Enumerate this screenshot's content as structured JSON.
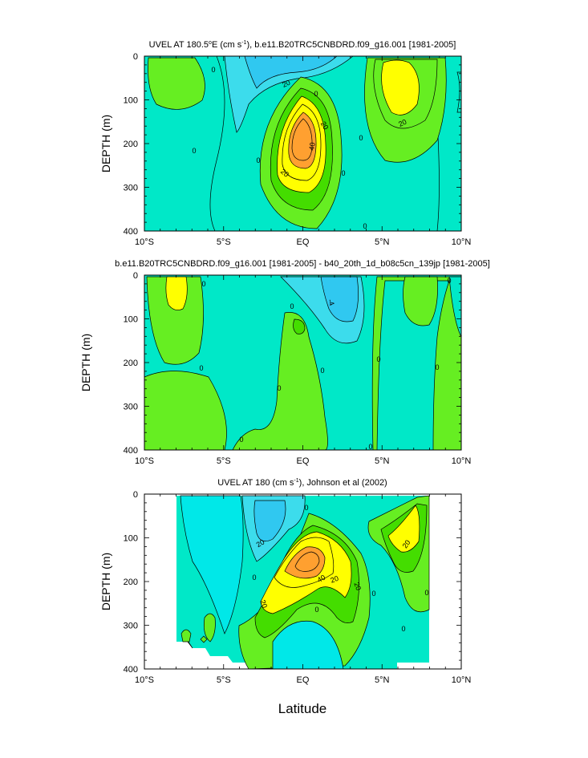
{
  "colors": {
    "cyan_light": "#00e8c8",
    "cyan": "#00e8e8",
    "cyan_mid": "#3cdcec",
    "cyan_dark": "#30c8f0",
    "green": "#66ee22",
    "green_bright": "#44dd00",
    "green_light": "#a0f020",
    "yellow": "#ffff00",
    "orange": "#ffa030",
    "line": "#000000"
  },
  "chart_data": [
    {
      "type": "contour",
      "title": "UVEL AT 180.5°E (cm s⁻¹), b.e11.B20TRC5CNBDRD.f09_g16.001 [1981-2005]",
      "title_pre": "UVEL AT 180.5",
      "title_sup1": "o",
      "title_mid": "E (cm s",
      "title_sup2": "-1",
      "title_post": "), b.e11.B20TRC5CNBDRD.f09_g16.001 [1981-2005]",
      "ylabel": "DEPTH (m)",
      "xlim": [
        -10,
        10
      ],
      "ylim": [
        400,
        0
      ],
      "yticks": [
        "0",
        "100",
        "200",
        "300",
        "400"
      ],
      "xticks": [
        "10°S",
        "5°S",
        "EQ",
        "5°N",
        "10°N"
      ],
      "contour_labels": [
        "0",
        "0",
        "0",
        "0",
        "0",
        "0",
        "0",
        "20",
        "20",
        "20",
        "20",
        "40"
      ],
      "features": [
        {
          "kind": "jet",
          "lat": 0,
          "depth": 180,
          "peak": 60
        },
        {
          "kind": "max",
          "lat": 6,
          "depth": 40,
          "peak": 30
        },
        {
          "kind": "max",
          "lat": -8,
          "depth": 50,
          "peak": 10
        }
      ]
    },
    {
      "type": "contour",
      "title": "b.e11.B20TRC5CNBDRD.f09_g16.001 [1981-2005] - b40_20th_1d_b08c5cn_139jp [1981-2005]",
      "title_pre": "b.e11.B20TRC5CNBDRD.f09_g16.001 [1981-2005] - b40_20th_1d_b08c5cn_139jp [1981-2005]",
      "title_sup1": "",
      "title_mid": "",
      "title_sup2": "",
      "title_post": "",
      "ylabel": "DEPTH (m)",
      "xlim": [
        -10,
        10
      ],
      "ylim": [
        400,
        0
      ],
      "yticks": [
        "0",
        "100",
        "200",
        "300",
        "400"
      ],
      "xticks": [
        "10°S",
        "5°S",
        "EQ",
        "5°N",
        "10°N"
      ],
      "contour_labels": [
        "0",
        "0",
        "0",
        "0",
        "0",
        "0",
        "0",
        "0",
        "0",
        "0",
        "-4"
      ]
    },
    {
      "type": "contour",
      "title": "UVEL AT 180 (cm s⁻¹), Johnson et al (2002)",
      "title_pre": "UVEL AT 180 (cm s",
      "title_sup1": "",
      "title_mid": "",
      "title_sup2": "-1",
      "title_post": "), Johnson et al (2002)",
      "ylabel": "DEPTH (m)",
      "xlabel": "Latitude",
      "xlim": [
        -10,
        10
      ],
      "ylim": [
        400,
        0
      ],
      "yticks": [
        "0",
        "100",
        "200",
        "300",
        "400"
      ],
      "xticks": [
        "10°S",
        "5°S",
        "EQ",
        "5°N",
        "10°N"
      ],
      "contour_labels": [
        "0",
        "0",
        "0",
        "0",
        "0",
        "0",
        "20",
        "20",
        "20",
        "20",
        "20",
        "40"
      ],
      "features": [
        {
          "kind": "jet",
          "lat": 0.5,
          "depth": 170,
          "peak": 60
        },
        {
          "kind": "max",
          "lat": 6,
          "depth": 100,
          "peak": 30
        }
      ]
    }
  ]
}
